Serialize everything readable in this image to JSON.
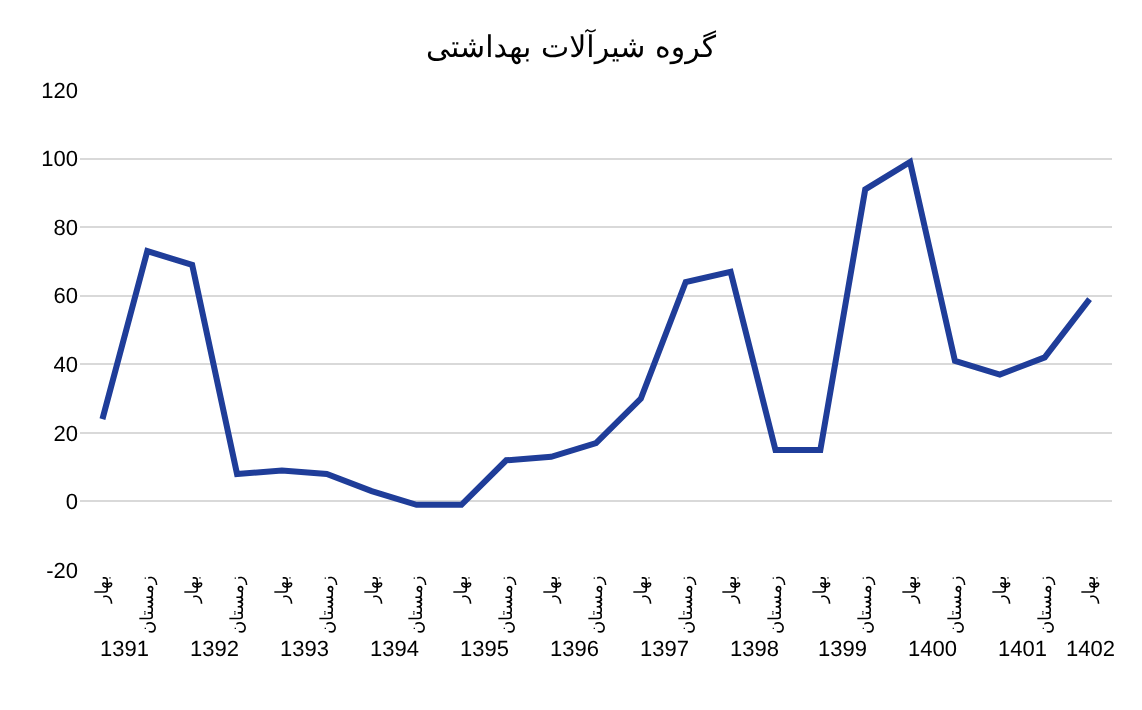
{
  "chart_data": {
    "type": "line",
    "title": "گروه شیرآلات بهداشتی",
    "categories": [
      "بهار",
      "زمستان",
      "بهار",
      "زمستان",
      "بهار",
      "زمستان",
      "بهار",
      "زمستان",
      "بهار",
      "زمستان",
      "بهار",
      "زمستان",
      "بهار",
      "زمستان",
      "بهار",
      "زمستان",
      "بهار",
      "زمستان",
      "بهار",
      "زمستان",
      "بهار",
      "زمستان",
      "بهار"
    ],
    "series": [
      {
        "color": "#1f3d99",
        "values": [
          24,
          73,
          69,
          8,
          9,
          8,
          3,
          -1,
          -1,
          12,
          13,
          17,
          30,
          64,
          67,
          15,
          15,
          91,
          99,
          41,
          37,
          42,
          59
        ]
      }
    ],
    "annotations": [
      "1391",
      "1392",
      "1393",
      "1394",
      "1395",
      "1396",
      "1397",
      "1398",
      "1399",
      "1400",
      "1401",
      "1402"
    ],
    "ylim": [
      -20,
      120
    ],
    "yticks": [
      -20,
      0,
      20,
      40,
      60,
      80,
      100,
      120
    ],
    "grid": "y",
    "legend": false,
    "marker": "none",
    "line_style": "solid"
  }
}
